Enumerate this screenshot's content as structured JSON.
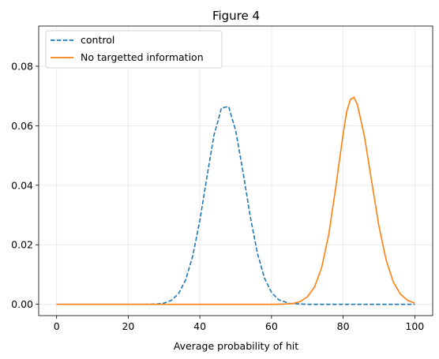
{
  "chart_data": {
    "type": "line",
    "title": "Figure 4",
    "xlabel": "Average probability of hit",
    "ylabel": "",
    "xlim": [
      -5,
      105
    ],
    "ylim": [
      -0.0038,
      0.0935
    ],
    "xticks": [
      0,
      20,
      40,
      60,
      80,
      100
    ],
    "xtick_labels": [
      "0",
      "20",
      "40",
      "60",
      "80",
      "100"
    ],
    "yticks": [
      0.0,
      0.02,
      0.04,
      0.06,
      0.08
    ],
    "ytick_labels": [
      "0.00",
      "0.02",
      "0.04",
      "0.06",
      "0.08"
    ],
    "grid": true,
    "legend_position": "upper-left",
    "series": [
      {
        "name": "control",
        "color": "#1f77b4",
        "line_style": "dashed",
        "x": [
          0,
          5,
          10,
          15,
          20,
          25,
          28,
          30,
          32,
          34,
          36,
          38,
          40,
          42,
          44,
          45,
          46,
          48,
          50,
          52,
          54,
          56,
          58,
          60,
          62,
          65,
          70,
          75,
          80,
          85,
          90,
          95,
          100
        ],
        "y": [
          0.0,
          0.0,
          0.0,
          0.0,
          0.0,
          0.0,
          0.0001,
          0.0004,
          0.0013,
          0.0035,
          0.0081,
          0.0162,
          0.0282,
          0.043,
          0.0572,
          0.0613,
          0.0659,
          0.0665,
          0.0584,
          0.0448,
          0.03,
          0.0175,
          0.0089,
          0.004,
          0.0015,
          0.0003,
          0.0,
          0.0,
          0.0,
          0.0,
          0.0,
          0.0,
          0.0
        ]
      },
      {
        "name": "No targetted information",
        "color": "#ff7f0e",
        "line_style": "solid",
        "x": [
          0,
          10,
          20,
          30,
          40,
          50,
          60,
          64,
          66,
          68,
          70,
          72,
          74,
          76,
          78,
          80,
          81,
          82,
          83,
          84,
          86,
          88,
          90,
          92,
          94,
          96,
          98,
          100
        ],
        "y": [
          0.0,
          0.0,
          0.0,
          0.0,
          0.0,
          0.0,
          0.0,
          0.0001,
          0.0003,
          0.0009,
          0.0025,
          0.0058,
          0.0123,
          0.0236,
          0.0398,
          0.0573,
          0.0647,
          0.0688,
          0.0696,
          0.067,
          0.0561,
          0.041,
          0.0262,
          0.0149,
          0.0075,
          0.0034,
          0.0013,
          0.0004
        ]
      }
    ]
  }
}
